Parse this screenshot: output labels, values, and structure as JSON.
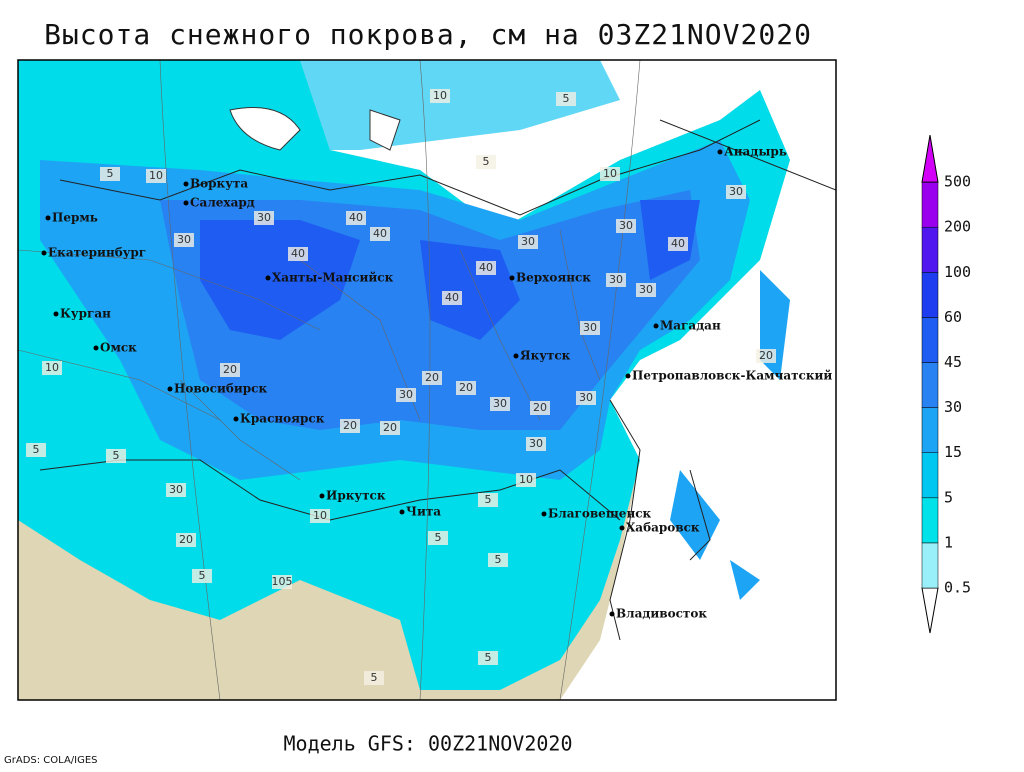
{
  "title": "Высота снежного покрова, см на 03Z21NOV2020",
  "subtitle": "Модель GFS: 00Z21NOV2020",
  "credit": "GrADS: COLA/IGES",
  "cities": [
    "Воркута",
    "Салехард",
    "Пермь",
    "Екатеринбург",
    "Ханты-Мансийск",
    "Курган",
    "Омск",
    "Новосибирск",
    "Красноярск",
    "Иркутск",
    "Чита",
    "Благовещенск",
    "Хабаровск",
    "Владивосток",
    "Якутск",
    "Верхоянск",
    "Магадан",
    "Петропавловск-Камчатский",
    "Анадырь"
  ],
  "contour_labels": [
    10,
    5,
    5,
    10,
    10,
    5,
    30,
    40,
    40,
    40,
    30,
    30,
    40,
    30,
    30,
    40,
    40,
    30,
    30,
    30,
    20,
    20,
    20,
    30,
    20,
    30,
    20,
    20,
    30,
    10,
    10,
    5,
    5,
    5,
    5,
    20,
    30,
    10,
    105,
    5,
    5,
    5,
    5,
    20,
    30
  ],
  "legend": {
    "levels": [
      0.5,
      1,
      5,
      15,
      30,
      45,
      60,
      100,
      200,
      500
    ],
    "colors": [
      "#ffffff",
      "#9af0f8",
      "#00e2ea",
      "#00c6f2",
      "#1ea4f4",
      "#2882f2",
      "#1e5cf2",
      "#1e3cf0",
      "#5018ee",
      "#9a00ee",
      "#d200f6"
    ]
  }
}
